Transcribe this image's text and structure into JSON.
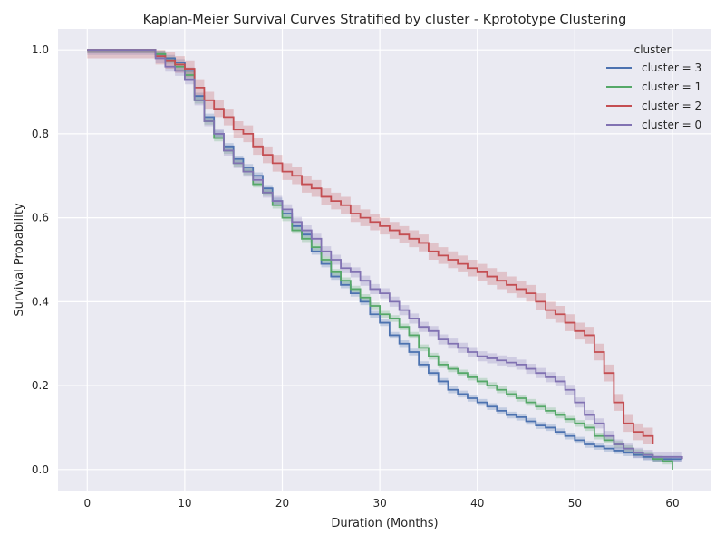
{
  "chart_data": {
    "type": "line",
    "title": "Kaplan-Meier Survival Curves Stratified by cluster - Kprototype Clustering",
    "xlabel": "Duration (Months)",
    "ylabel": "Survival Probability",
    "xlim": [
      -3,
      64
    ],
    "ylim": [
      -0.05,
      1.05
    ],
    "x_ticks": [
      0,
      10,
      20,
      30,
      40,
      50,
      60
    ],
    "y_ticks": [
      0.0,
      0.2,
      0.4,
      0.6,
      0.8,
      1.0
    ],
    "x_tick_labels": [
      "0",
      "10",
      "20",
      "30",
      "40",
      "50",
      "60"
    ],
    "y_tick_labels": [
      "0.0",
      "0.2",
      "0.4",
      "0.6",
      "0.8",
      "1.0"
    ],
    "grid": true,
    "background": "#eaeaf2",
    "legend": {
      "title": "cluster",
      "placement": "top-right"
    },
    "step": "post",
    "series": [
      {
        "name": "cluster = 3",
        "color": "#4c72b0",
        "x": [
          0,
          7,
          8,
          9,
          10,
          11,
          12,
          13,
          14,
          15,
          16,
          17,
          18,
          19,
          20,
          21,
          22,
          23,
          24,
          25,
          26,
          27,
          28,
          29,
          30,
          31,
          32,
          33,
          34,
          35,
          36,
          37,
          38,
          39,
          40,
          41,
          42,
          43,
          44,
          45,
          46,
          47,
          48,
          49,
          50,
          51,
          52,
          53,
          54,
          55,
          56,
          57,
          58,
          59,
          60,
          61
        ],
        "y": [
          1.0,
          0.99,
          0.98,
          0.97,
          0.95,
          0.89,
          0.84,
          0.8,
          0.77,
          0.74,
          0.72,
          0.7,
          0.67,
          0.64,
          0.61,
          0.58,
          0.56,
          0.52,
          0.49,
          0.46,
          0.44,
          0.42,
          0.4,
          0.37,
          0.35,
          0.32,
          0.3,
          0.28,
          0.25,
          0.23,
          0.21,
          0.19,
          0.18,
          0.17,
          0.16,
          0.15,
          0.14,
          0.13,
          0.125,
          0.115,
          0.105,
          0.1,
          0.09,
          0.08,
          0.07,
          0.06,
          0.055,
          0.05,
          0.045,
          0.04,
          0.035,
          0.03,
          0.025,
          0.025,
          0.025,
          0.025
        ],
        "ci": 0.008
      },
      {
        "name": "cluster = 1",
        "color": "#55a868",
        "x": [
          0,
          7,
          8,
          9,
          10,
          11,
          12,
          13,
          14,
          15,
          16,
          17,
          18,
          19,
          20,
          21,
          22,
          23,
          24,
          25,
          26,
          27,
          28,
          29,
          30,
          31,
          32,
          33,
          34,
          35,
          36,
          37,
          38,
          39,
          40,
          41,
          42,
          43,
          44,
          45,
          46,
          47,
          48,
          49,
          50,
          51,
          52,
          53,
          54,
          55,
          56,
          57,
          58,
          59,
          60
        ],
        "y": [
          1.0,
          0.99,
          0.975,
          0.96,
          0.94,
          0.88,
          0.83,
          0.79,
          0.76,
          0.73,
          0.71,
          0.68,
          0.66,
          0.63,
          0.6,
          0.57,
          0.55,
          0.53,
          0.5,
          0.47,
          0.45,
          0.43,
          0.41,
          0.39,
          0.37,
          0.36,
          0.34,
          0.32,
          0.29,
          0.27,
          0.25,
          0.24,
          0.23,
          0.22,
          0.21,
          0.2,
          0.19,
          0.18,
          0.17,
          0.16,
          0.15,
          0.14,
          0.13,
          0.12,
          0.11,
          0.1,
          0.08,
          0.07,
          0.06,
          0.05,
          0.04,
          0.035,
          0.025,
          0.02,
          0.0
        ],
        "ci": 0.008
      },
      {
        "name": "cluster = 2",
        "color": "#c44e52",
        "x": [
          0,
          7,
          8,
          9,
          10,
          11,
          12,
          13,
          14,
          15,
          16,
          17,
          18,
          19,
          20,
          21,
          22,
          23,
          24,
          25,
          26,
          27,
          28,
          29,
          30,
          31,
          32,
          33,
          34,
          35,
          36,
          37,
          38,
          39,
          40,
          41,
          42,
          43,
          44,
          45,
          46,
          47,
          48,
          49,
          50,
          51,
          52,
          53,
          54,
          55,
          56,
          57,
          58
        ],
        "y": [
          1.0,
          0.985,
          0.975,
          0.965,
          0.955,
          0.91,
          0.88,
          0.86,
          0.84,
          0.81,
          0.8,
          0.77,
          0.75,
          0.73,
          0.71,
          0.7,
          0.68,
          0.67,
          0.65,
          0.64,
          0.63,
          0.61,
          0.6,
          0.59,
          0.58,
          0.57,
          0.56,
          0.55,
          0.54,
          0.52,
          0.51,
          0.5,
          0.49,
          0.48,
          0.47,
          0.46,
          0.45,
          0.44,
          0.43,
          0.42,
          0.4,
          0.38,
          0.37,
          0.35,
          0.33,
          0.32,
          0.28,
          0.23,
          0.16,
          0.11,
          0.09,
          0.08,
          0.06
        ],
        "ci": 0.02
      },
      {
        "name": "cluster = 0",
        "color": "#8172b2",
        "x": [
          0,
          7,
          8,
          9,
          10,
          11,
          12,
          13,
          14,
          15,
          16,
          17,
          18,
          19,
          20,
          21,
          22,
          23,
          24,
          25,
          26,
          27,
          28,
          29,
          30,
          31,
          32,
          33,
          34,
          35,
          36,
          37,
          38,
          39,
          40,
          41,
          42,
          43,
          44,
          45,
          46,
          47,
          48,
          49,
          50,
          51,
          52,
          53,
          54,
          55,
          56,
          57,
          58,
          59,
          60,
          61
        ],
        "y": [
          1.0,
          0.98,
          0.96,
          0.95,
          0.93,
          0.88,
          0.83,
          0.8,
          0.76,
          0.73,
          0.71,
          0.69,
          0.66,
          0.64,
          0.62,
          0.59,
          0.57,
          0.55,
          0.52,
          0.5,
          0.48,
          0.47,
          0.45,
          0.43,
          0.42,
          0.4,
          0.38,
          0.36,
          0.34,
          0.33,
          0.31,
          0.3,
          0.29,
          0.28,
          0.27,
          0.265,
          0.26,
          0.255,
          0.25,
          0.24,
          0.23,
          0.22,
          0.21,
          0.19,
          0.16,
          0.13,
          0.11,
          0.08,
          0.06,
          0.05,
          0.04,
          0.035,
          0.03,
          0.03,
          0.03,
          0.025
        ],
        "ci": 0.012
      }
    ]
  }
}
